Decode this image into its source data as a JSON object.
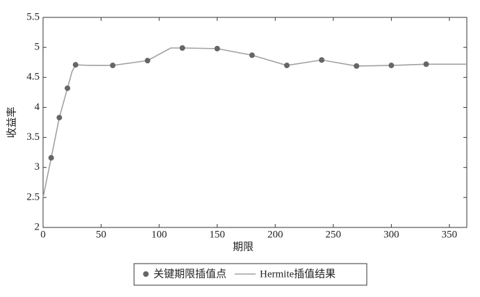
{
  "chart_data": {
    "type": "line",
    "xlabel": "期限",
    "ylabel": "收益率",
    "xlim": [
      0,
      365
    ],
    "xticks": [
      0,
      50,
      100,
      150,
      200,
      250,
      300,
      350
    ],
    "ylim": [
      2,
      5.5
    ],
    "yticks": [
      2,
      2.5,
      3,
      3.5,
      4,
      4.5,
      5,
      5.5
    ],
    "series": [
      {
        "name": "关键期限插值点",
        "style": "marker",
        "color": "#666666",
        "x": [
          7,
          14,
          21,
          28,
          60,
          90,
          120,
          150,
          180,
          210,
          240,
          270,
          300,
          330
        ],
        "values": [
          3.16,
          3.83,
          4.32,
          4.71,
          4.7,
          4.78,
          4.99,
          4.98,
          4.87,
          4.7,
          4.79,
          4.69,
          4.7,
          4.72
        ]
      },
      {
        "name": "Hermite插值结果",
        "style": "line",
        "color": "#a0a0a0",
        "x": [
          0,
          7,
          14,
          21,
          25,
          28,
          40,
          60,
          90,
          110,
          120,
          150,
          180,
          210,
          240,
          270,
          300,
          330,
          365
        ],
        "values": [
          2.5,
          3.16,
          3.83,
          4.32,
          4.6,
          4.71,
          4.7,
          4.7,
          4.78,
          4.99,
          4.99,
          4.98,
          4.87,
          4.7,
          4.79,
          4.69,
          4.7,
          4.72,
          4.72
        ]
      }
    ]
  }
}
